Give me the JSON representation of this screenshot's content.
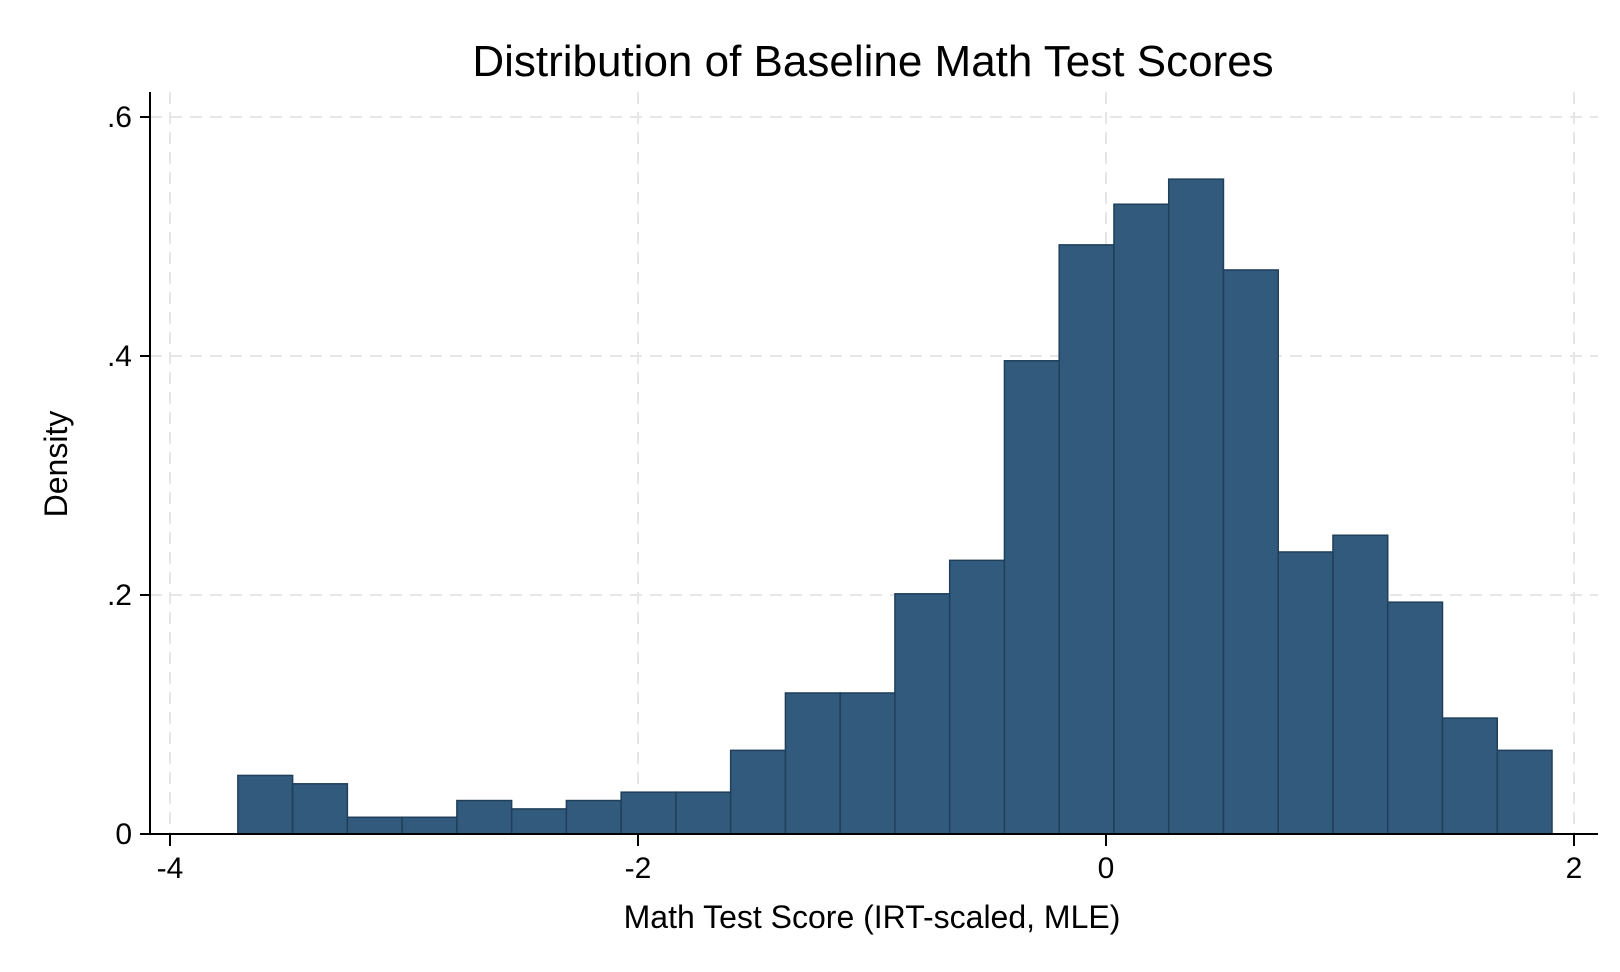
{
  "chart_data": {
    "type": "bar",
    "title": "Distribution of Baseline Math Test Scores",
    "xlabel": "Math Test Score (IRT-scaled, MLE)",
    "ylabel": "Density",
    "xlim": [
      -4,
      2
    ],
    "ylim": [
      0,
      0.6
    ],
    "x_ticks": [
      -4,
      -2,
      0,
      2
    ],
    "x_tick_labels": [
      "-4",
      "-2",
      "0",
      "2"
    ],
    "y_ticks": [
      0,
      0.2,
      0.4,
      0.6
    ],
    "y_tick_labels": [
      "0",
      ".2",
      ".4",
      ".6"
    ],
    "grid": true,
    "bar_color": "#325a7d",
    "bin_edges": [
      -3.71,
      -3.476,
      -3.242,
      -3.008,
      -2.774,
      -2.54,
      -2.306,
      -2.072,
      -1.838,
      -1.604,
      -1.37,
      -1.136,
      -0.902,
      -0.668,
      -0.434,
      -0.2,
      0.034,
      0.268,
      0.502,
      0.736,
      0.97,
      1.204,
      1.438,
      1.672,
      1.906
    ],
    "values": [
      0.049,
      0.042,
      0.014,
      0.014,
      0.028,
      0.021,
      0.028,
      0.035,
      0.035,
      0.07,
      0.118,
      0.118,
      0.201,
      0.229,
      0.396,
      0.493,
      0.527,
      0.548,
      0.472,
      0.236,
      0.25,
      0.194,
      0.097,
      0.07
    ]
  }
}
